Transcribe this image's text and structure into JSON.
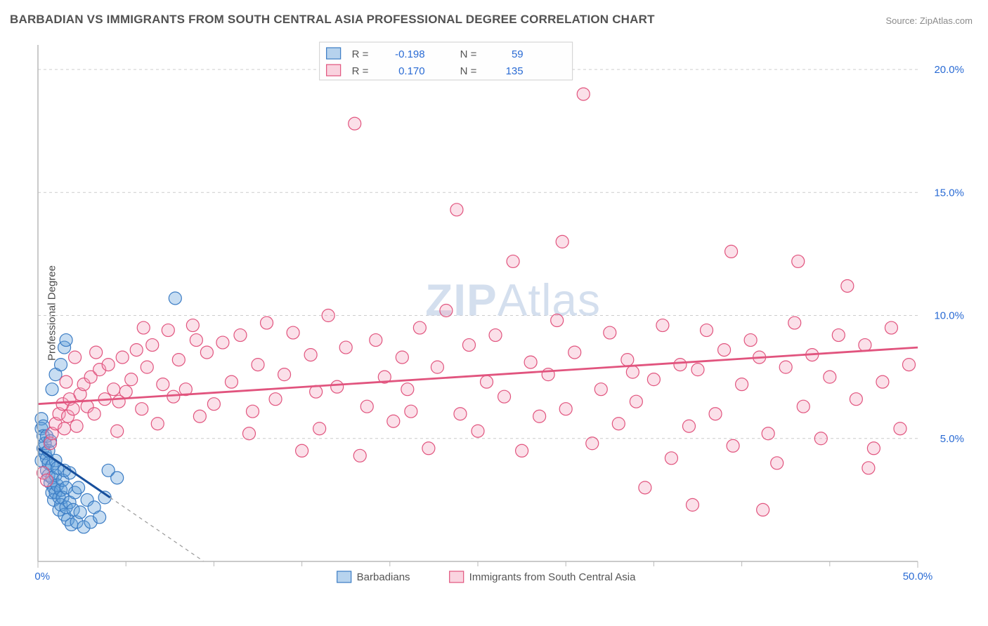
{
  "title": "BARBADIAN VS IMMIGRANTS FROM SOUTH CENTRAL ASIA PROFESSIONAL DEGREE CORRELATION CHART",
  "source_label": "Source: ",
  "source_name": "ZipAtlas.com",
  "ylabel": "Professional Degree",
  "watermark_a": "ZIP",
  "watermark_b": "Atlas",
  "chart": {
    "type": "scatter",
    "background_color": "#ffffff",
    "grid_color": "#cccccc",
    "axis_color": "#b9b9b9",
    "tick_label_color": "#2a6bd4",
    "xlim": [
      0,
      50
    ],
    "ylim": [
      0,
      21
    ],
    "x_ticks": [
      0,
      50
    ],
    "x_tick_labels": [
      "0.0%",
      "50.0%"
    ],
    "x_minor_ticks": [
      5,
      10,
      15,
      20,
      25,
      30,
      35,
      40,
      45
    ],
    "y_ticks": [
      5,
      10,
      15,
      20
    ],
    "y_tick_labels": [
      "5.0%",
      "10.0%",
      "15.0%",
      "20.0%"
    ],
    "marker_radius": 9,
    "series": [
      {
        "name": "Barbadians",
        "color_fill": "rgba(95,157,218,0.35)",
        "color_stroke": "#3b7cc4",
        "R": "-0.198",
        "N": "59",
        "trend": {
          "x1": 0,
          "y1": 4.6,
          "x2": 4.1,
          "y2": 2.6,
          "color": "#174f9c",
          "extrapolate_to_x": 9.4
        },
        "points": [
          [
            0.2,
            5.8
          ],
          [
            0.2,
            5.4
          ],
          [
            0.3,
            5.5
          ],
          [
            0.3,
            5.1
          ],
          [
            0.3,
            4.6
          ],
          [
            0.2,
            4.1
          ],
          [
            0.4,
            4.4
          ],
          [
            0.4,
            4.8
          ],
          [
            0.5,
            5.1
          ],
          [
            0.5,
            4.2
          ],
          [
            0.5,
            3.7
          ],
          [
            0.6,
            3.5
          ],
          [
            0.6,
            4.0
          ],
          [
            0.6,
            4.5
          ],
          [
            0.7,
            4.9
          ],
          [
            0.7,
            3.2
          ],
          [
            0.8,
            3.9
          ],
          [
            0.8,
            3.4
          ],
          [
            0.8,
            2.8
          ],
          [
            0.9,
            3.0
          ],
          [
            0.9,
            2.5
          ],
          [
            1.0,
            2.8
          ],
          [
            1.0,
            3.5
          ],
          [
            1.0,
            4.1
          ],
          [
            1.1,
            3.8
          ],
          [
            1.1,
            3.1
          ],
          [
            1.2,
            2.6
          ],
          [
            1.2,
            2.1
          ],
          [
            1.3,
            2.9
          ],
          [
            1.3,
            2.3
          ],
          [
            1.4,
            3.3
          ],
          [
            1.4,
            2.6
          ],
          [
            1.5,
            3.7
          ],
          [
            1.5,
            1.9
          ],
          [
            1.6,
            2.2
          ],
          [
            1.6,
            3.0
          ],
          [
            1.7,
            1.7
          ],
          [
            1.8,
            2.4
          ],
          [
            1.8,
            3.6
          ],
          [
            1.9,
            1.5
          ],
          [
            2.0,
            2.1
          ],
          [
            2.1,
            2.8
          ],
          [
            2.2,
            1.6
          ],
          [
            2.3,
            3.0
          ],
          [
            2.4,
            2.0
          ],
          [
            2.6,
            1.4
          ],
          [
            2.8,
            2.5
          ],
          [
            3.0,
            1.6
          ],
          [
            3.2,
            2.2
          ],
          [
            3.5,
            1.8
          ],
          [
            3.8,
            2.6
          ],
          [
            4.0,
            3.7
          ],
          [
            4.5,
            3.4
          ],
          [
            0.8,
            7.0
          ],
          [
            1.0,
            7.6
          ],
          [
            1.3,
            8.0
          ],
          [
            1.5,
            8.7
          ],
          [
            1.6,
            9.0
          ],
          [
            7.8,
            10.7
          ]
        ]
      },
      {
        "name": "Immigrants from South Central Asia",
        "color_fill": "rgba(244,160,186,0.32)",
        "color_stroke": "#e1547e",
        "R": "0.170",
        "N": "135",
        "trend": {
          "x1": 0,
          "y1": 6.4,
          "x2": 50,
          "y2": 8.7,
          "color": "#e1547e"
        },
        "points": [
          [
            0.3,
            3.6
          ],
          [
            0.5,
            3.3
          ],
          [
            0.7,
            4.8
          ],
          [
            0.8,
            5.2
          ],
          [
            1.0,
            5.6
          ],
          [
            1.2,
            6.0
          ],
          [
            1.4,
            6.4
          ],
          [
            1.5,
            5.4
          ],
          [
            1.7,
            5.9
          ],
          [
            1.8,
            6.6
          ],
          [
            2.0,
            6.2
          ],
          [
            2.2,
            5.5
          ],
          [
            2.4,
            6.8
          ],
          [
            2.6,
            7.2
          ],
          [
            2.8,
            6.3
          ],
          [
            3.0,
            7.5
          ],
          [
            3.2,
            6.0
          ],
          [
            3.5,
            7.8
          ],
          [
            3.8,
            6.6
          ],
          [
            4.0,
            8.0
          ],
          [
            4.3,
            7.0
          ],
          [
            4.5,
            5.3
          ],
          [
            4.8,
            8.3
          ],
          [
            5.0,
            6.9
          ],
          [
            5.3,
            7.4
          ],
          [
            5.6,
            8.6
          ],
          [
            5.9,
            6.2
          ],
          [
            6.2,
            7.9
          ],
          [
            6.5,
            8.8
          ],
          [
            6.8,
            5.6
          ],
          [
            7.1,
            7.2
          ],
          [
            7.4,
            9.4
          ],
          [
            7.7,
            6.7
          ],
          [
            8.0,
            8.2
          ],
          [
            8.4,
            7.0
          ],
          [
            8.8,
            9.6
          ],
          [
            9.2,
            5.9
          ],
          [
            9.6,
            8.5
          ],
          [
            10.0,
            6.4
          ],
          [
            10.5,
            8.9
          ],
          [
            11.0,
            7.3
          ],
          [
            11.5,
            9.2
          ],
          [
            12.0,
            5.2
          ],
          [
            12.5,
            8.0
          ],
          [
            13.0,
            9.7
          ],
          [
            13.5,
            6.6
          ],
          [
            14.0,
            7.6
          ],
          [
            14.5,
            9.3
          ],
          [
            15.0,
            4.5
          ],
          [
            15.5,
            8.4
          ],
          [
            16.0,
            5.4
          ],
          [
            16.5,
            10.0
          ],
          [
            17.0,
            7.1
          ],
          [
            17.5,
            8.7
          ],
          [
            18.0,
            17.8
          ],
          [
            18.3,
            4.3
          ],
          [
            18.7,
            6.3
          ],
          [
            19.2,
            9.0
          ],
          [
            19.7,
            7.5
          ],
          [
            20.2,
            5.7
          ],
          [
            20.7,
            8.3
          ],
          [
            21.2,
            6.1
          ],
          [
            21.7,
            9.5
          ],
          [
            22.2,
            4.6
          ],
          [
            22.7,
            7.9
          ],
          [
            23.2,
            10.2
          ],
          [
            23.8,
            14.3
          ],
          [
            24.0,
            6.0
          ],
          [
            24.5,
            8.8
          ],
          [
            25.0,
            5.3
          ],
          [
            25.5,
            7.3
          ],
          [
            26.0,
            9.2
          ],
          [
            26.5,
            6.7
          ],
          [
            27.0,
            12.2
          ],
          [
            27.5,
            4.5
          ],
          [
            28.0,
            8.1
          ],
          [
            28.5,
            5.9
          ],
          [
            29.0,
            7.6
          ],
          [
            29.5,
            9.8
          ],
          [
            29.8,
            13.0
          ],
          [
            30.0,
            6.2
          ],
          [
            30.5,
            8.5
          ],
          [
            31.0,
            19.0
          ],
          [
            31.5,
            4.8
          ],
          [
            32.0,
            7.0
          ],
          [
            32.5,
            9.3
          ],
          [
            33.0,
            5.6
          ],
          [
            33.5,
            8.2
          ],
          [
            34.0,
            6.5
          ],
          [
            34.5,
            3.0
          ],
          [
            35.0,
            7.4
          ],
          [
            35.5,
            9.6
          ],
          [
            36.0,
            4.2
          ],
          [
            36.5,
            8.0
          ],
          [
            37.0,
            5.5
          ],
          [
            37.2,
            2.3
          ],
          [
            37.5,
            7.8
          ],
          [
            38.0,
            9.4
          ],
          [
            38.5,
            6.0
          ],
          [
            39.0,
            8.6
          ],
          [
            39.4,
            12.6
          ],
          [
            39.5,
            4.7
          ],
          [
            40.0,
            7.2
          ],
          [
            40.5,
            9.0
          ],
          [
            41.0,
            8.3
          ],
          [
            41.5,
            5.2
          ],
          [
            42.0,
            4.0
          ],
          [
            42.5,
            7.9
          ],
          [
            43.0,
            9.7
          ],
          [
            43.2,
            12.2
          ],
          [
            43.5,
            6.3
          ],
          [
            44.0,
            8.4
          ],
          [
            44.5,
            5.0
          ],
          [
            45.0,
            7.5
          ],
          [
            45.5,
            9.2
          ],
          [
            46.0,
            11.2
          ],
          [
            46.5,
            6.6
          ],
          [
            47.0,
            8.8
          ],
          [
            47.2,
            3.8
          ],
          [
            47.5,
            4.6
          ],
          [
            48.0,
            7.3
          ],
          [
            48.5,
            9.5
          ],
          [
            49.0,
            5.4
          ],
          [
            49.5,
            8.0
          ],
          [
            41.2,
            2.1
          ],
          [
            33.8,
            7.7
          ],
          [
            21.0,
            7.0
          ],
          [
            15.8,
            6.9
          ],
          [
            12.2,
            6.1
          ],
          [
            9.0,
            9.0
          ],
          [
            6.0,
            9.5
          ],
          [
            4.6,
            6.5
          ],
          [
            3.3,
            8.5
          ],
          [
            2.1,
            8.3
          ],
          [
            1.6,
            7.3
          ]
        ]
      }
    ],
    "legend_top": {
      "bg": "#fefefe",
      "border": "#cfcfcf",
      "label_R": "R =",
      "label_N": "N ="
    },
    "legend_bottom": {
      "items": [
        "Barbadians",
        "Immigrants from South Central Asia"
      ]
    }
  }
}
